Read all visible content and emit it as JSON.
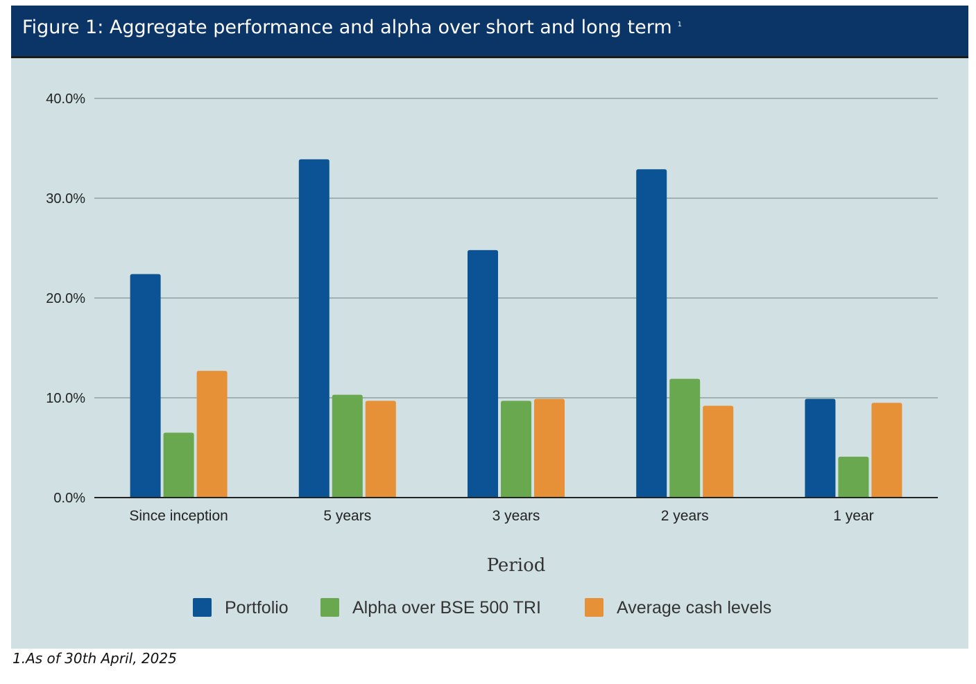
{
  "header": {
    "title": "Figure 1:  Aggregate performance and alpha over short and long term",
    "superscript": "1"
  },
  "footnote": "1.As of 30th April, 2025",
  "colors": {
    "header_bg": "#0b3566",
    "panel_bg": "#d0e0e3",
    "portfolio": "#0b5394",
    "alpha": "#6aa84f",
    "cash": "#e69138"
  },
  "chart_data": {
    "type": "bar",
    "title": "",
    "xlabel": "Period",
    "ylabel": "",
    "categories": [
      "Since inception",
      "5 years",
      "3 years",
      "2 years",
      "1 year"
    ],
    "series": [
      {
        "name": "Portfolio",
        "values": [
          22.4,
          33.9,
          24.8,
          32.9,
          9.9
        ]
      },
      {
        "name": "Alpha over BSE 500 TRI",
        "values": [
          6.5,
          10.3,
          9.7,
          11.9,
          4.1
        ]
      },
      {
        "name": "Average cash levels",
        "values": [
          12.7,
          9.7,
          9.9,
          9.2,
          9.5
        ]
      }
    ],
    "ylim": [
      0,
      40
    ],
    "yticks": [
      "0.0%",
      "10.0%",
      "20.0%",
      "30.0%",
      "40.0%"
    ],
    "grid": true,
    "legend_position": "bottom"
  }
}
